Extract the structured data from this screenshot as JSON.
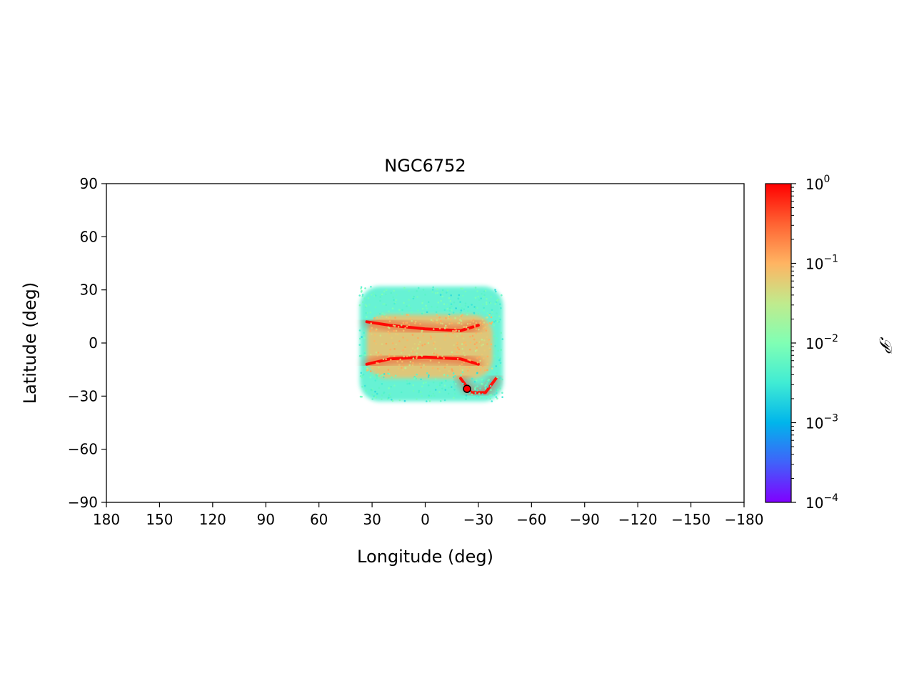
{
  "chart_data": {
    "type": "scatter",
    "title": "NGC6752",
    "xlabel": "Longitude (deg)",
    "ylabel": "Latitude (deg)",
    "xlim": [
      180,
      -180
    ],
    "ylim": [
      -90,
      90
    ],
    "x_ticks": [
      180,
      150,
      120,
      90,
      60,
      30,
      0,
      -30,
      -60,
      -90,
      -120,
      -150,
      -180
    ],
    "x_tick_labels": [
      "180",
      "150",
      "120",
      "90",
      "60",
      "30",
      "0",
      "−30",
      "−60",
      "−90",
      "−120",
      "−150",
      "−180"
    ],
    "y_ticks": [
      90,
      60,
      30,
      0,
      -30,
      -60,
      -90
    ],
    "y_tick_labels": [
      "90",
      "60",
      "30",
      "0",
      "−30",
      "−60",
      "−90"
    ],
    "grid": false,
    "colorbar": {
      "label": "𝒫",
      "scale": "log",
      "range": [
        0.0001,
        1
      ],
      "colormap": "rainbow",
      "colors": [
        "#8000ff",
        "#4062fa",
        "#00b5eb",
        "#40ecd4",
        "#80ffb4",
        "#c0eb8d",
        "#ffb462",
        "#ff6232",
        "#ff0000"
      ],
      "tick_labels": [
        {
          "value": 1,
          "base": "10",
          "exp": "0"
        },
        {
          "value": 0.1,
          "base": "10",
          "exp": "−1"
        },
        {
          "value": 0.01,
          "base": "10",
          "exp": "−2"
        },
        {
          "value": 0.001,
          "base": "10",
          "exp": "−3"
        },
        {
          "value": 0.0001,
          "base": "10",
          "exp": "−4"
        }
      ]
    },
    "cluster_position": {
      "lon": -23.6,
      "lat": -25.9,
      "color": "#ff0000"
    },
    "density_regions": [
      {
        "name": "envelope",
        "lon_range": [
          37,
          -44
        ],
        "lat_range": [
          -33,
          32
        ],
        "value": 0.004
      },
      {
        "name": "inner-band",
        "lon_range": [
          33,
          -38
        ],
        "lat_range": [
          -20,
          16
        ],
        "value": 0.08
      },
      {
        "name": "upper-arc",
        "points": [
          [
            33,
            12
          ],
          [
            20,
            10
          ],
          [
            0,
            8
          ],
          [
            -20,
            7
          ],
          [
            -30,
            10
          ]
        ],
        "value": 0.9
      },
      {
        "name": "lower-arc",
        "points": [
          [
            33,
            -12
          ],
          [
            20,
            -9
          ],
          [
            0,
            -8
          ],
          [
            -20,
            -9
          ],
          [
            -30,
            -12
          ]
        ],
        "value": 0.9
      },
      {
        "name": "trailing-arm",
        "points": [
          [
            -20,
            -20
          ],
          [
            -26,
            -28
          ],
          [
            -34,
            -28
          ],
          [
            -40,
            -20
          ]
        ],
        "value": 0.8
      }
    ]
  }
}
